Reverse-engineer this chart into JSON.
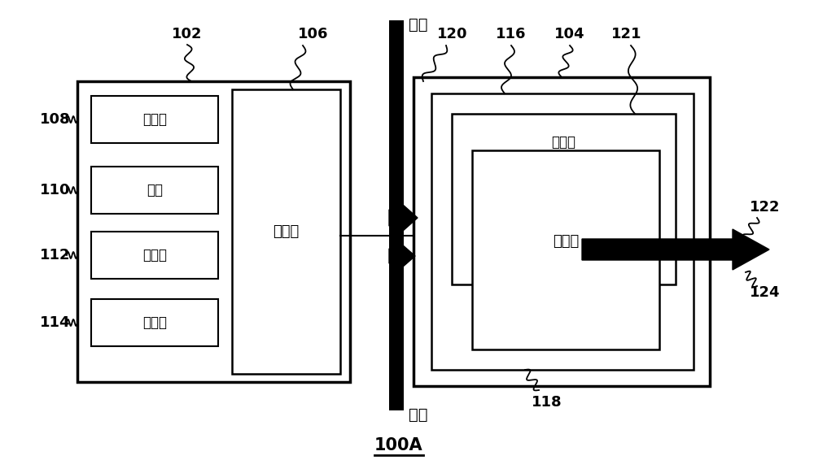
{
  "bg_color": "#ffffff",
  "title": "100A",
  "label_102": "102",
  "label_106": "106",
  "label_120": "120",
  "label_116": "116",
  "label_104": "104",
  "label_121": "121",
  "label_108": "108",
  "label_110": "110",
  "label_112": "112",
  "label_114": "114",
  "label_118": "118",
  "label_122": "122",
  "label_124": "124",
  "text_kongqi_top": "空气",
  "text_kongqi_bot": "空气",
  "text_tongzhibu": "通知部",
  "text_dianchi": "电池",
  "text_chuanganqi": "传感器",
  "text_cunchu": "存储器",
  "text_zhizhifu": "控制部",
  "text_wuhuabu": "雾化部",
  "text_zhuyeqi": "贯液器"
}
